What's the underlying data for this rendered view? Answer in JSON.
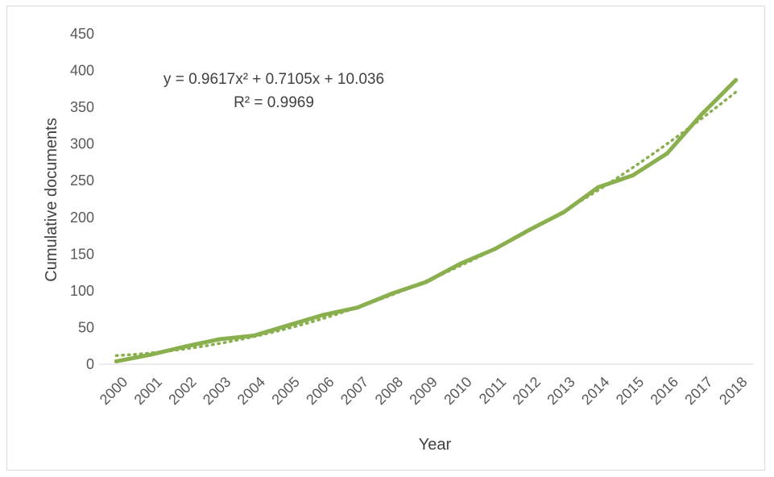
{
  "chart_data": {
    "type": "line",
    "title": "",
    "xlabel": "Year",
    "ylabel": "Cumulative documents",
    "ylim": [
      0,
      450
    ],
    "yticks": [
      0,
      50,
      100,
      150,
      200,
      250,
      300,
      350,
      400,
      450
    ],
    "grid": false,
    "legend": "none",
    "categories": [
      "2000",
      "2001",
      "2002",
      "2003",
      "2004",
      "2005",
      "2006",
      "2007",
      "2008",
      "2009",
      "2010",
      "2011",
      "2012",
      "2013",
      "2014",
      "2015",
      "2016",
      "2017",
      "2018"
    ],
    "series": [
      {
        "values": [
          4,
          13,
          24,
          34,
          39,
          53,
          67,
          77,
          96,
          112,
          137,
          157,
          183,
          207,
          241,
          257,
          287,
          340,
          387
        ],
        "color": "#8aaf4e",
        "style": "solid"
      }
    ],
    "trendline": {
      "type": "polynomial",
      "order": 2,
      "coefficients": {
        "a": 0.9617,
        "b": 0.7105,
        "c": 10.036
      },
      "color": "#8aaf4e",
      "style": "dotted",
      "equation_label": "y = 0.9617x² + 0.7105x + 10.036",
      "r2_label": "R² = 0.9969"
    }
  }
}
